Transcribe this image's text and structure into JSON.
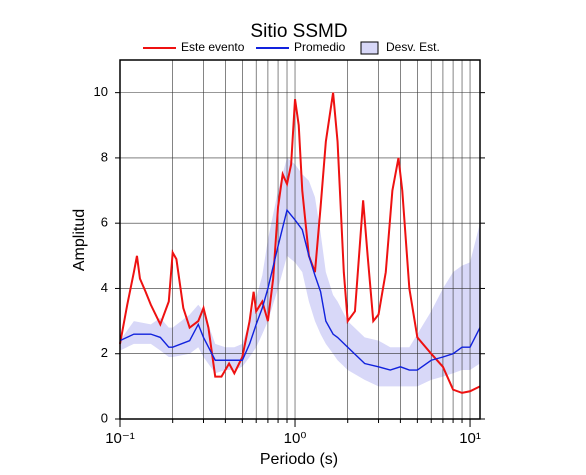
{
  "chart_data": {
    "type": "line",
    "title": "Sitio SSMD",
    "xlabel": "Periodo (s)",
    "ylabel": "Amplitud",
    "xscale": "log",
    "xlim": [
      0.1,
      11.4
    ],
    "ylim": [
      0,
      11
    ],
    "xticks": [
      {
        "value": 0.1,
        "label": "10⁻¹"
      },
      {
        "value": 1,
        "label": "10⁰"
      },
      {
        "value": 10,
        "label": "10¹"
      }
    ],
    "xminor": [
      0.2,
      0.3,
      0.4,
      0.5,
      0.6,
      0.7,
      0.8,
      0.9,
      2,
      3,
      4,
      5,
      6,
      7,
      8,
      9
    ],
    "yticks": [
      0,
      2,
      4,
      6,
      8,
      10
    ],
    "grid": true,
    "series": [
      {
        "name": "Este evento",
        "color": "#ee1111",
        "x": [
          0.1,
          0.11,
          0.12,
          0.125,
          0.13,
          0.14,
          0.15,
          0.17,
          0.19,
          0.2,
          0.21,
          0.23,
          0.25,
          0.28,
          0.3,
          0.32,
          0.35,
          0.38,
          0.42,
          0.45,
          0.5,
          0.55,
          0.58,
          0.6,
          0.65,
          0.7,
          0.75,
          0.8,
          0.85,
          0.9,
          0.95,
          1.0,
          1.05,
          1.1,
          1.2,
          1.3,
          1.4,
          1.5,
          1.65,
          1.75,
          1.9,
          2.0,
          2.2,
          2.45,
          2.6,
          2.8,
          3.0,
          3.3,
          3.6,
          3.9,
          4.1,
          4.5,
          5.0,
          6.0,
          7.0,
          8.0,
          9.0,
          10.0,
          11.4
        ],
        "values": [
          2.3,
          3.5,
          4.5,
          5.0,
          4.3,
          3.9,
          3.5,
          2.9,
          3.6,
          5.1,
          4.9,
          3.4,
          2.8,
          3.0,
          3.4,
          2.8,
          1.3,
          1.3,
          1.7,
          1.4,
          1.9,
          3.0,
          3.9,
          3.3,
          3.6,
          3.0,
          4.3,
          6.5,
          7.5,
          7.2,
          7.8,
          9.8,
          9.0,
          7.0,
          5.0,
          4.5,
          6.5,
          8.5,
          10.0,
          8.5,
          4.5,
          3.0,
          3.3,
          6.7,
          5.0,
          3.0,
          3.2,
          4.5,
          7.0,
          8.0,
          7.0,
          4.0,
          2.5,
          2.0,
          1.6,
          0.9,
          0.8,
          0.85,
          1.0
        ]
      },
      {
        "name": "Promedio",
        "color": "#1122dd",
        "x": [
          0.1,
          0.12,
          0.15,
          0.17,
          0.19,
          0.2,
          0.25,
          0.28,
          0.3,
          0.35,
          0.4,
          0.45,
          0.5,
          0.55,
          0.6,
          0.65,
          0.7,
          0.8,
          0.9,
          1.0,
          1.1,
          1.2,
          1.3,
          1.4,
          1.5,
          1.65,
          1.75,
          2.0,
          2.5,
          3.0,
          3.5,
          4.0,
          4.5,
          5.0,
          6.0,
          7.0,
          8.0,
          9.0,
          10.0,
          11.4
        ],
        "values": [
          2.4,
          2.6,
          2.6,
          2.5,
          2.2,
          2.2,
          2.4,
          2.9,
          2.5,
          1.8,
          1.8,
          1.8,
          1.8,
          2.3,
          2.9,
          3.4,
          4.0,
          5.3,
          6.4,
          6.1,
          5.8,
          5.0,
          4.4,
          3.9,
          3.0,
          2.6,
          2.5,
          2.2,
          1.7,
          1.6,
          1.5,
          1.6,
          1.5,
          1.5,
          1.8,
          1.9,
          2.0,
          2.2,
          2.2,
          2.8
        ]
      }
    ],
    "band": {
      "name": "Desv. Est.",
      "color": "#d8d8f8",
      "x": [
        0.1,
        0.12,
        0.15,
        0.17,
        0.19,
        0.2,
        0.25,
        0.28,
        0.3,
        0.35,
        0.4,
        0.45,
        0.5,
        0.55,
        0.6,
        0.65,
        0.7,
        0.8,
        0.9,
        1.0,
        1.1,
        1.2,
        1.3,
        1.4,
        1.5,
        1.65,
        1.75,
        2.0,
        2.5,
        3.0,
        3.5,
        4.0,
        4.5,
        5.0,
        6.0,
        7.0,
        8.0,
        9.0,
        10.0,
        11.4
      ],
      "lower": [
        2.1,
        2.3,
        2.3,
        2.1,
        1.9,
        1.9,
        2.0,
        2.2,
        1.9,
        1.4,
        1.5,
        1.5,
        1.6,
        1.9,
        2.2,
        2.6,
        3.0,
        4.0,
        5.0,
        4.8,
        4.5,
        3.6,
        3.0,
        2.6,
        2.3,
        2.0,
        1.8,
        1.5,
        1.2,
        1.0,
        1.0,
        1.0,
        1.0,
        1.0,
        1.2,
        1.3,
        1.4,
        1.5,
        1.5,
        1.7
      ],
      "upper": [
        2.4,
        3.0,
        2.9,
        3.1,
        2.8,
        2.8,
        3.2,
        3.5,
        3.3,
        2.3,
        2.2,
        2.2,
        2.3,
        3.0,
        3.7,
        4.4,
        5.5,
        7.0,
        8.0,
        7.8,
        7.5,
        7.3,
        6.8,
        5.7,
        4.5,
        3.8,
        3.6,
        3.0,
        2.5,
        2.4,
        2.2,
        2.2,
        2.2,
        2.6,
        3.3,
        4.0,
        4.5,
        4.7,
        4.8,
        6.0
      ]
    }
  }
}
